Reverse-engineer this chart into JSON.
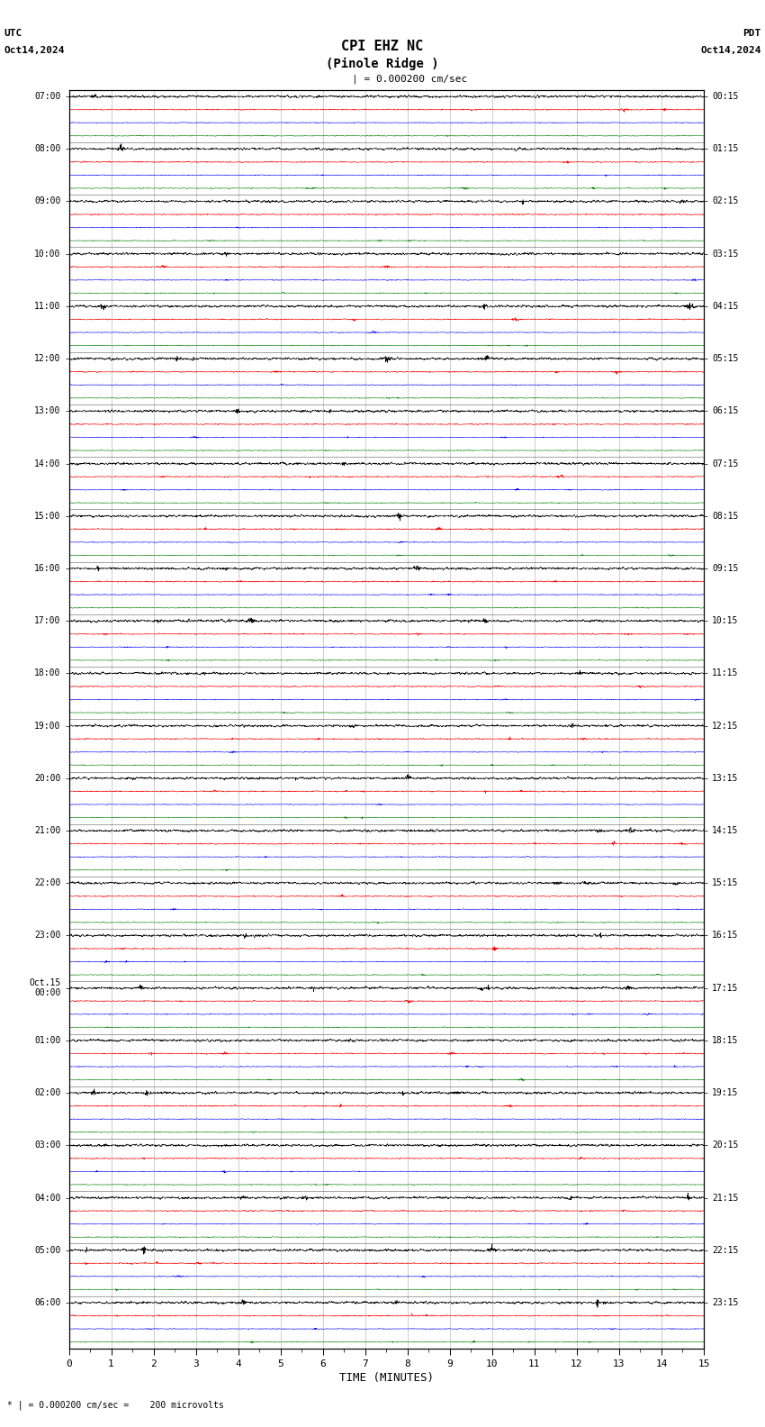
{
  "title_line1": "CPI EHZ NC",
  "title_line2": "(Pinole Ridge )",
  "scale_label": "= 0.000200 cm/sec",
  "utc_label": "UTC",
  "pdt_label": "PDT",
  "date_left": "Oct14,2024",
  "date_right": "Oct14,2024",
  "bottom_label": "* | = 0.000200 cm/sec =    200 microvolts",
  "xlabel": "TIME (MINUTES)",
  "background_color": "#ffffff",
  "grid_color": "#aaaaaa",
  "colors": [
    "black",
    "red",
    "blue",
    "green"
  ],
  "left_times": [
    "07:00",
    "08:00",
    "09:00",
    "10:00",
    "11:00",
    "12:00",
    "13:00",
    "14:00",
    "15:00",
    "16:00",
    "17:00",
    "18:00",
    "19:00",
    "20:00",
    "21:00",
    "22:00",
    "23:00",
    "Oct.15\n00:00",
    "01:00",
    "02:00",
    "03:00",
    "04:00",
    "05:00",
    "06:00"
  ],
  "right_times": [
    "00:15",
    "01:15",
    "02:15",
    "03:15",
    "04:15",
    "05:15",
    "06:15",
    "07:15",
    "08:15",
    "09:15",
    "10:15",
    "11:15",
    "12:15",
    "13:15",
    "14:15",
    "15:15",
    "16:15",
    "17:15",
    "18:15",
    "19:15",
    "20:15",
    "21:15",
    "22:15",
    "23:15"
  ],
  "n_rows": 24,
  "n_traces_per_row": 4,
  "time_minutes": 15,
  "fig_width": 8.5,
  "fig_height": 15.84,
  "dpi": 100
}
